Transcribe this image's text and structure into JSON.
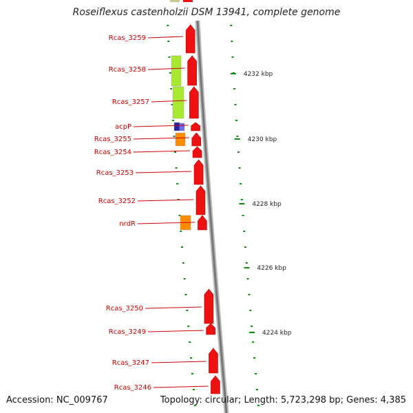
{
  "title": "Roseiflexus castenholzii DSM 13941, complete genome",
  "accession": "Accession: NC_009767",
  "genome_info": "Topology: circular; Length: 5,723,298 bp; Genes: 4,385",
  "colors": {
    "gene_red": "#ee1111",
    "label_red": "#cc0000",
    "green_feature": "#a8e830",
    "blue_feature": "#2222aa",
    "orange_feature": "#ff8c00",
    "tick_green": "#118811",
    "backbone_grey": "#8a8a8a"
  },
  "genes": [
    {
      "name": "Rcas_3259"
    },
    {
      "name": "Rcas_3258"
    },
    {
      "name": "Rcas_3257"
    },
    {
      "name": "acpP"
    },
    {
      "name": "Rcas_3255"
    },
    {
      "name": "Rcas_3254"
    },
    {
      "name": "Rcas_3253"
    },
    {
      "name": "Rcas_3252"
    },
    {
      "name": "nrdR"
    },
    {
      "name": "Rcas_3250"
    },
    {
      "name": "Rcas_3249"
    },
    {
      "name": "Rcas_3247"
    },
    {
      "name": "Rcas_3246"
    }
  ],
  "ticks": [
    "4232 kbp",
    "4230 kbp",
    "4228 kbp",
    "4226 kbp",
    "4224 kbp"
  ]
}
